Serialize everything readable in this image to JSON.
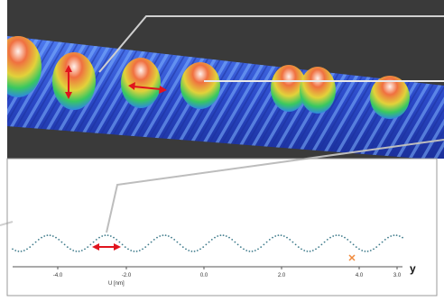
{
  "colors": {
    "dark_background": "#3a3a3a",
    "surface_low": "#2b49c8",
    "surface_peak": "#e8502a",
    "arrow": "#e0141e",
    "connector": "#cfcfcf",
    "profile_dots": "#3d7a8a",
    "marker": "#f08a3c"
  },
  "icons": {
    "arrow": "double-headed-arrow",
    "marker": "x-marker"
  },
  "profile": {
    "x_ticks": [
      "-4.0",
      "-2.0",
      "0.0",
      "2.0",
      "4.0",
      "3.0"
    ],
    "x_axis_label": "U [nm]",
    "axis_letter": "y"
  }
}
